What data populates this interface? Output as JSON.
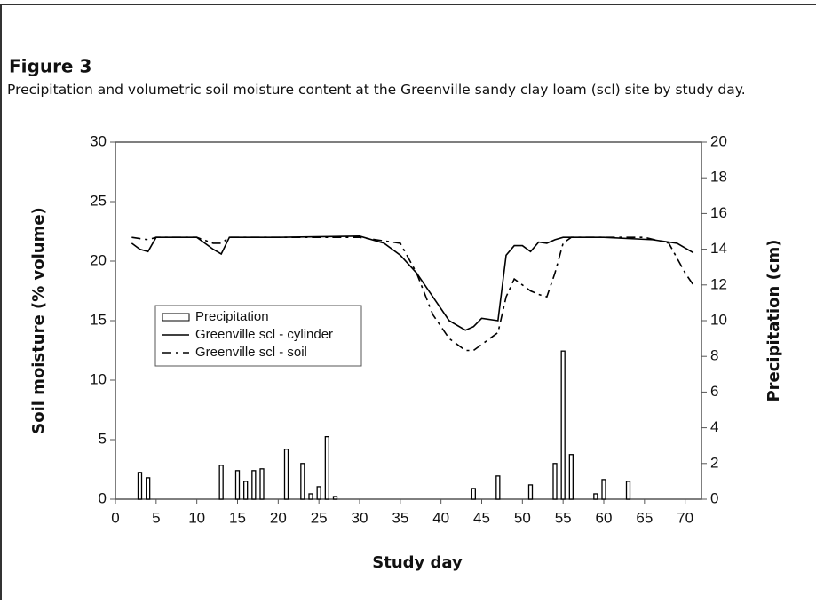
{
  "heading": "Figure 3",
  "chart_data": {
    "type": "bar-line",
    "title": "Precipitation and volumetric soil moisture content at the Greenville sandy clay loam (scl) site by study day.",
    "x_label": "Study day",
    "y_label": "Soil moisture (% volume)",
    "y2_label": "Precipitation (cm)",
    "xlim": [
      0,
      72
    ],
    "xticks": [
      0,
      5,
      10,
      15,
      20,
      25,
      30,
      35,
      40,
      45,
      50,
      55,
      60,
      65,
      70
    ],
    "ylim": [
      0,
      30
    ],
    "yticks": [
      0,
      5,
      10,
      15,
      20,
      25,
      30
    ],
    "y2lim": [
      0,
      20
    ],
    "y2ticks": [
      0,
      2,
      4,
      6,
      8,
      10,
      12,
      14,
      16,
      18,
      20
    ],
    "series": [
      {
        "name": "Precipitation",
        "type": "bar",
        "axis": "y2",
        "color": "#000000",
        "x": [
          3,
          4,
          13,
          15,
          16,
          17,
          18,
          21,
          23,
          24,
          25,
          26,
          27,
          44,
          47,
          51,
          54,
          55,
          56,
          59,
          60,
          63
        ],
        "values": [
          1.5,
          1.2,
          1.9,
          1.6,
          1.0,
          1.6,
          1.7,
          2.8,
          2.0,
          0.3,
          0.7,
          3.5,
          0.15,
          0.6,
          1.3,
          0.8,
          2.0,
          8.3,
          2.5,
          0.3,
          1.1,
          1.0
        ]
      },
      {
        "name": "Greenville scl - cylinder",
        "type": "line",
        "style": "solid",
        "color": "#000000",
        "x": [
          2,
          3,
          4,
          5,
          10,
          12,
          13,
          14,
          20,
          30,
          33,
          35,
          37,
          39,
          41,
          43,
          44,
          45,
          47,
          48,
          49,
          50,
          51,
          52,
          53,
          54,
          55,
          60,
          66,
          69,
          71
        ],
        "values": [
          21.5,
          21,
          20.8,
          22,
          22,
          21,
          20.6,
          22,
          22,
          22.1,
          21.5,
          20.5,
          19,
          17,
          15,
          14.2,
          14.5,
          15.2,
          15,
          20.5,
          21.3,
          21.3,
          20.8,
          21.6,
          21.5,
          21.8,
          22,
          22,
          21.8,
          21.5,
          20.7
        ]
      },
      {
        "name": "Greenville scl - soil",
        "type": "line",
        "style": "dashed",
        "color": "#000000",
        "x": [
          2,
          4,
          5,
          10,
          12,
          13,
          14,
          20,
          30,
          35,
          37,
          39,
          41,
          43,
          44,
          46,
          47,
          48,
          49,
          50,
          51,
          52,
          53,
          54,
          55,
          56,
          65,
          68,
          70,
          71
        ],
        "values": [
          22,
          21.8,
          22,
          22,
          21.5,
          21.5,
          22,
          22,
          22,
          21.5,
          19,
          15.5,
          13.5,
          12.5,
          12.5,
          13.5,
          14,
          17,
          18.5,
          18,
          17.5,
          17.2,
          17,
          19,
          21.5,
          22,
          22,
          21.5,
          19,
          18
        ]
      }
    ]
  }
}
